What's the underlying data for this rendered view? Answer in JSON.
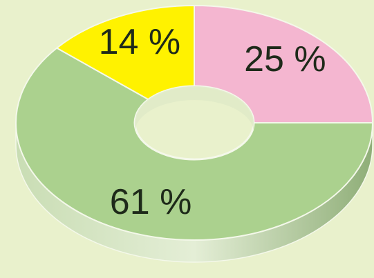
{
  "chart_data": {
    "type": "donut",
    "values": [
      25,
      61,
      14
    ],
    "value_labels": [
      "25 %",
      "61 %",
      "14 %"
    ],
    "colors": [
      "#f4b6d0",
      "#abd18e",
      "#fff200"
    ]
  }
}
